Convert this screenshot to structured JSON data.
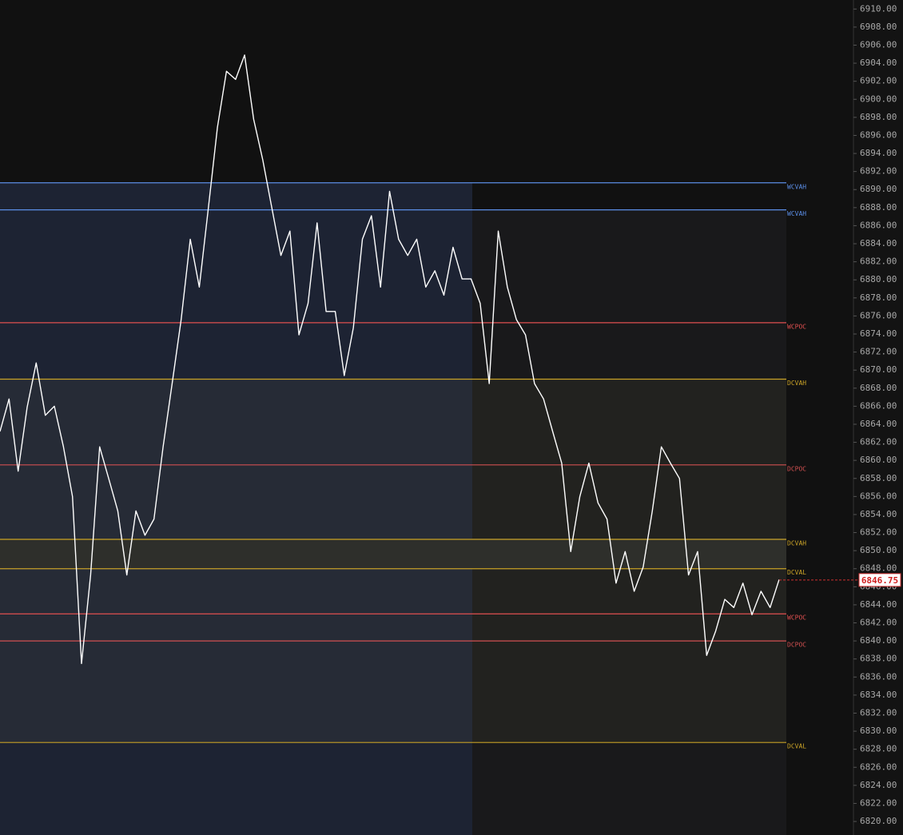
{
  "chart_data": {
    "type": "line",
    "ylim": [
      6818.5,
      6911
    ],
    "yticks": [
      {
        "value": 6910,
        "label": "6910.00"
      },
      {
        "value": 6908,
        "label": "6908.00"
      },
      {
        "value": 6906,
        "label": "6906.00"
      },
      {
        "value": 6904,
        "label": "6904.00"
      },
      {
        "value": 6902,
        "label": "6902.00"
      },
      {
        "value": 6900,
        "label": "6900.00"
      },
      {
        "value": 6898,
        "label": "6898.00"
      },
      {
        "value": 6896,
        "label": "6896.00"
      },
      {
        "value": 6894,
        "label": "6894.00"
      },
      {
        "value": 6892,
        "label": "6892.00"
      },
      {
        "value": 6890,
        "label": "6890.00"
      },
      {
        "value": 6888,
        "label": "6888.00"
      },
      {
        "value": 6886,
        "label": "6886.00"
      },
      {
        "value": 6884,
        "label": "6884.00"
      },
      {
        "value": 6882,
        "label": "6882.00"
      },
      {
        "value": 6880,
        "label": "6880.00"
      },
      {
        "value": 6878,
        "label": "6878.00"
      },
      {
        "value": 6876,
        "label": "6876.00"
      },
      {
        "value": 6874,
        "label": "6874.00"
      },
      {
        "value": 6872,
        "label": "6872.00"
      },
      {
        "value": 6870,
        "label": "6870.00"
      },
      {
        "value": 6868,
        "label": "6868.00"
      },
      {
        "value": 6866,
        "label": "6866.00"
      },
      {
        "value": 6864,
        "label": "6864.00"
      },
      {
        "value": 6862,
        "label": "6862.00"
      },
      {
        "value": 6860,
        "label": "6860.00"
      },
      {
        "value": 6858,
        "label": "6858.00"
      },
      {
        "value": 6856,
        "label": "6856.00"
      },
      {
        "value": 6854,
        "label": "6854.00"
      },
      {
        "value": 6852,
        "label": "6852.00"
      },
      {
        "value": 6850,
        "label": "6850.00"
      },
      {
        "value": 6848,
        "label": "6848.00"
      },
      {
        "value": 6846,
        "label": "6846.00"
      },
      {
        "value": 6844,
        "label": "6844.00"
      },
      {
        "value": 6842,
        "label": "6842.00"
      },
      {
        "value": 6840,
        "label": "6840.00"
      },
      {
        "value": 6838,
        "label": "6838.00"
      },
      {
        "value": 6836,
        "label": "6836.00"
      },
      {
        "value": 6834,
        "label": "6834.00"
      },
      {
        "value": 6832,
        "label": "6832.00"
      },
      {
        "value": 6830,
        "label": "6830.00"
      },
      {
        "value": 6828,
        "label": "6828.00"
      },
      {
        "value": 6826,
        "label": "6826.00"
      },
      {
        "value": 6824,
        "label": "6824.00"
      },
      {
        "value": 6822,
        "label": "6822.00"
      },
      {
        "value": 6820,
        "label": "6820.00"
      }
    ],
    "series": [
      {
        "color": "#ffffff",
        "values": [
          6863.2,
          6866.8,
          6858.8,
          6865.9,
          6870.8,
          6865,
          6866,
          6861.5,
          6856,
          6837.5,
          6847.3,
          6861.5,
          6858,
          6854.4,
          6847.3,
          6854.4,
          6851.7,
          6853.5,
          6861.5,
          6868.5,
          6875.6,
          6884.5,
          6879.2,
          6888,
          6896.9,
          6903.1,
          6902.2,
          6904.9,
          6897.8,
          6893.3,
          6888,
          6882.7,
          6885.4,
          6873.9,
          6877.4,
          6886.3,
          6876.5,
          6876.5,
          6869.4,
          6874.7,
          6884.5,
          6887.1,
          6879.2,
          6889.8,
          6884.5,
          6882.7,
          6884.5,
          6879.2,
          6881,
          6878.3,
          6883.6,
          6880.1,
          6880.1,
          6877.4,
          6868.5,
          6885.4,
          6879.2,
          6875.6,
          6873.9,
          6868.5,
          6866.8,
          6863.2,
          6859.7,
          6849.9,
          6856,
          6859.7,
          6855.3,
          6853.5,
          6846.4,
          6849.9,
          6845.5,
          6848.2,
          6854.4,
          6861.5,
          6859.7,
          6858,
          6847.3,
          6849.9,
          6838.4,
          6841.1,
          6844.6,
          6843.7,
          6846.4,
          6842.9,
          6845.5,
          6843.7,
          6846.8
        ]
      }
    ],
    "levels": [
      {
        "label": "WCVAH",
        "value": 6890.75,
        "color": "#5b8ee6"
      },
      {
        "label": "WCVAH",
        "value": 6887.75,
        "color": "#5b8ee6"
      },
      {
        "label": "WCPOC",
        "value": 6875.25,
        "color": "#e05050"
      },
      {
        "label": "DCVAH",
        "value": 6869,
        "color": "#c9a227"
      },
      {
        "label": "DCPOC",
        "value": 6859.5,
        "color": "#d05050"
      },
      {
        "label": "DCVAH",
        "value": 6851.25,
        "color": "#c9a227"
      },
      {
        "label": "DCVAL",
        "value": 6848,
        "color": "#c9a227"
      },
      {
        "label": "WCPOC",
        "value": 6843,
        "color": "#e05050"
      },
      {
        "label": "DCPOC",
        "value": 6840,
        "color": "#d05050"
      },
      {
        "label": "DCVAL",
        "value": 6828.75,
        "color": "#c9a227"
      }
    ],
    "current_price": {
      "value": 6846.75,
      "label": "6846.75"
    }
  }
}
